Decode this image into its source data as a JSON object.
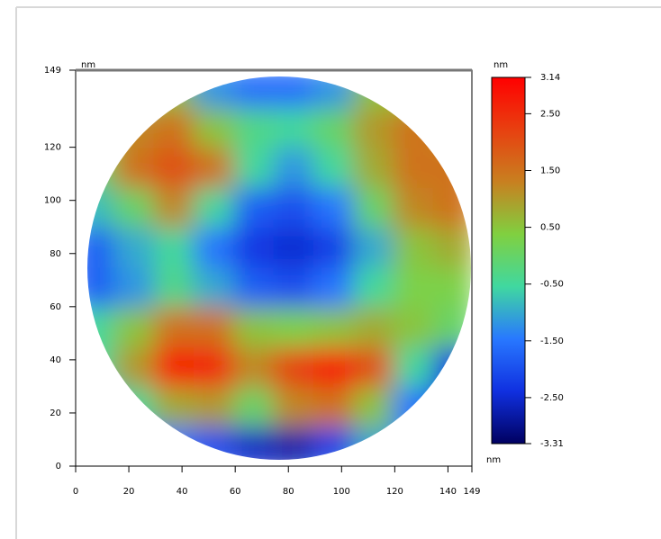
{
  "chart_data": {
    "type": "heatmap",
    "x_label": "nm",
    "y_label": "nm",
    "colorbar_label": "nm",
    "x": [
      7,
      22,
      37,
      52,
      67,
      82,
      97,
      112,
      127,
      142
    ],
    "y": [
      142,
      127,
      112,
      97,
      82,
      67,
      52,
      37,
      22,
      7
    ],
    "z": [
      [
        -0.5,
        -0.5,
        0.5,
        -1.2,
        -1.6,
        -1.6,
        -1.2,
        0.5,
        0.5,
        0.5
      ],
      [
        0.5,
        1.2,
        1.5,
        0.5,
        -0.3,
        -0.5,
        0,
        1.0,
        1.5,
        1.2
      ],
      [
        0,
        1.5,
        2.0,
        1.5,
        -0.5,
        -1.2,
        -0.5,
        0.8,
        1.5,
        1.5
      ],
      [
        -0.8,
        0,
        1.2,
        -0.5,
        -1.8,
        -2.0,
        -1.5,
        0,
        1.2,
        1.5
      ],
      [
        -1.8,
        -1.0,
        -0.5,
        -1.5,
        -2.3,
        -2.5,
        -2.2,
        -1.0,
        0.5,
        0.8
      ],
      [
        -1.8,
        -1.2,
        -0.3,
        -1.0,
        -1.8,
        -2.0,
        -1.5,
        -0.5,
        0.3,
        0.3
      ],
      [
        -0.5,
        0.5,
        1.5,
        1.5,
        0.5,
        0.3,
        0.5,
        0.8,
        0.5,
        0
      ],
      [
        -0.5,
        1.0,
        2.8,
        2.6,
        1.2,
        2.2,
        2.8,
        2.0,
        -0.5,
        -2.3
      ],
      [
        -1.5,
        -0.5,
        0.8,
        1.0,
        0,
        1.2,
        1.5,
        0.5,
        -1.5,
        -2.5
      ],
      [
        -1.5,
        -1.5,
        -1.5,
        -2.0,
        -2.6,
        -2.8,
        -2.2,
        -1.0,
        -1.2,
        -1.5
      ]
    ],
    "xlim": [
      0,
      149
    ],
    "ylim": [
      0,
      149
    ],
    "xticks": [
      0,
      20,
      40,
      60,
      80,
      100,
      120,
      140,
      149
    ],
    "yticks": [
      0,
      20,
      40,
      60,
      80,
      100,
      120,
      149
    ],
    "zlim": [
      -3.31,
      3.14
    ],
    "zticks": [
      3.14,
      {
        "value": 2.5,
        "label": "2.50"
      },
      {
        "value": 1.5,
        "label": "1.50"
      },
      {
        "value": 0.5,
        "label": "0.50"
      },
      {
        "value": -0.5,
        "label": "-0.50"
      },
      {
        "value": -1.5,
        "label": "-1.50"
      },
      {
        "value": -2.5,
        "label": "-2.50"
      },
      -3.31
    ],
    "colormap": [
      "#000060",
      "#1030e0",
      "#2878ff",
      "#40d8a0",
      "#80d040",
      "#c88020",
      "#e84010",
      "#ff0000"
    ]
  }
}
